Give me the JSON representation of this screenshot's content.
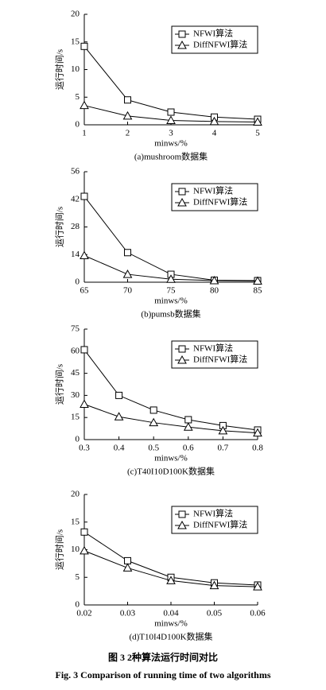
{
  "chart_data": [
    {
      "type": "line",
      "caption": "(a)mushroom数据集",
      "xlabel": "minws/%",
      "ylabel": "运行时间/s",
      "x": [
        1,
        2,
        3,
        4,
        5
      ],
      "xlim": [
        1,
        5
      ],
      "xticks": [
        1,
        2,
        3,
        4,
        5
      ],
      "ylim": [
        0,
        20
      ],
      "yticks": [
        0,
        5,
        10,
        15,
        20
      ],
      "legend": "upper right",
      "series": [
        {
          "name": "NFWI算法",
          "color": "#000000",
          "marker": "square",
          "values": [
            14.2,
            4.5,
            2.3,
            1.4,
            1.0
          ]
        },
        {
          "name": "DiffNFWI算法",
          "color": "#000000",
          "marker": "triangle",
          "values": [
            3.5,
            1.6,
            0.8,
            0.6,
            0.5
          ]
        }
      ]
    },
    {
      "type": "line",
      "caption": "(b)pumsb数据集",
      "xlabel": "minws/%",
      "ylabel": "运行时间/s",
      "x": [
        65,
        70,
        75,
        80,
        85
      ],
      "xlim": [
        65,
        85
      ],
      "xticks": [
        65,
        70,
        75,
        80,
        85
      ],
      "ylim": [
        0,
        56
      ],
      "yticks": [
        0,
        14,
        28,
        42,
        56
      ],
      "legend": "upper right",
      "series": [
        {
          "name": "NFWI算法",
          "color": "#000000",
          "marker": "square",
          "values": [
            43.5,
            15,
            4,
            1,
            0.8
          ]
        },
        {
          "name": "DiffNFWI算法",
          "color": "#000000",
          "marker": "triangle",
          "values": [
            13.5,
            4,
            1.5,
            0.8,
            0.6
          ]
        }
      ]
    },
    {
      "type": "line",
      "caption": "(c)T40I10D100K数据集",
      "xlabel": "minws/%",
      "ylabel": "运行时间/s",
      "x": [
        0.3,
        0.4,
        0.5,
        0.6,
        0.7,
        0.8
      ],
      "xlim": [
        0.3,
        0.8
      ],
      "xticks": [
        0.3,
        0.4,
        0.5,
        0.6,
        0.7,
        0.8
      ],
      "ylim": [
        0,
        75
      ],
      "yticks": [
        0,
        15,
        30,
        45,
        60,
        75
      ],
      "legend": "upper right",
      "series": [
        {
          "name": "NFWI算法",
          "color": "#000000",
          "marker": "square",
          "values": [
            61,
            30,
            20,
            13.5,
            9.5,
            6.5
          ]
        },
        {
          "name": "DiffNFWI算法",
          "color": "#000000",
          "marker": "triangle",
          "values": [
            24,
            15.5,
            11.5,
            8.5,
            6,
            4.5
          ]
        }
      ]
    },
    {
      "type": "line",
      "caption": "(d)T10I4D100K数据集",
      "xlabel": "minws/%",
      "ylabel": "运行时间/s",
      "x": [
        0.02,
        0.03,
        0.04,
        0.05,
        0.06
      ],
      "xlim": [
        0.02,
        0.06
      ],
      "xticks": [
        0.02,
        0.03,
        0.04,
        0.05,
        0.06
      ],
      "ylim": [
        0,
        20
      ],
      "yticks": [
        0,
        5,
        10,
        15,
        20
      ],
      "legend": "upper right",
      "series": [
        {
          "name": "NFWI算法",
          "color": "#000000",
          "marker": "square",
          "values": [
            13.2,
            8,
            5,
            4,
            3.6
          ]
        },
        {
          "name": "DiffNFWI算法",
          "color": "#000000",
          "marker": "triangle",
          "values": [
            9.8,
            6.7,
            4.4,
            3.5,
            3.3
          ]
        }
      ]
    }
  ],
  "figure_caption_cn": "图 3  2种算法运行时间对比",
  "figure_caption_en": "Fig. 3   Comparison of running time of two algorithms"
}
